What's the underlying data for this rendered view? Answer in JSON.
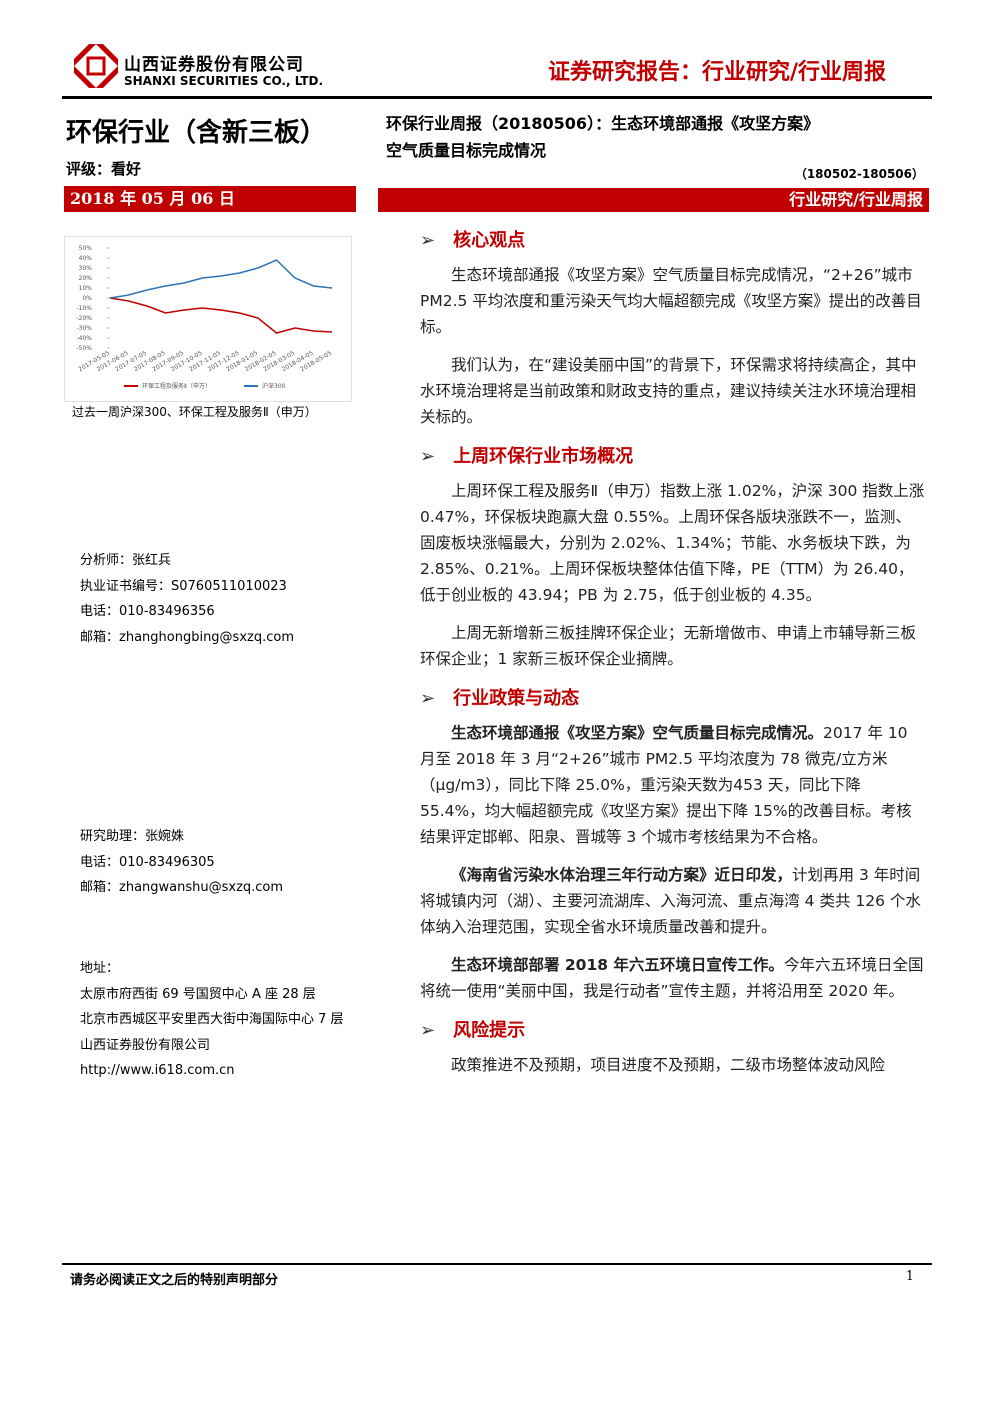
{
  "header": {
    "company_cn": "山西证券股份有限公司",
    "company_en": "SHANXI SECURITIES CO., LTD.",
    "report_type": "证券研究报告：行业研究/行业周报"
  },
  "sidebar": {
    "industry": "环保行业（含新三板）",
    "rating": "评级：看好",
    "date": "2018 年 05 月 06 日",
    "chart_caption": "过去一周沪深300、环保工程及服务Ⅱ（申万）",
    "analyst": [
      "分析师：张红兵",
      "执业证书编号：S0760511010023",
      "电话：010-83496356",
      "邮箱：zhanghongbing@sxzq.com"
    ],
    "assistant": [
      "研究助理：张婉姝",
      "电话：010-83496305",
      "邮箱：zhangwanshu@sxzq.com"
    ],
    "address": [
      "地址：",
      "太原市府西街 69 号国贸中心 A 座 28 层",
      "北京市西城区平安里西大街中海国际中心 7 层",
      "山西证券股份有限公司",
      "http://www.i618.com.cn"
    ]
  },
  "chart_data": {
    "type": "line",
    "categories": [
      "2017-05-05",
      "2017-06-05",
      "2017-07-05",
      "2017-08-05",
      "2017-09-05",
      "2017-10-05",
      "2017-11-05",
      "2017-12-05",
      "2018-01-05",
      "2018-02-05",
      "2018-03-05",
      "2018-04-05",
      "2018-05-05"
    ],
    "series": [
      {
        "name": "环保工程及服务Ⅱ（申万）",
        "color": "#c00000",
        "values": [
          0,
          -3,
          -8,
          -15,
          -12,
          -10,
          -12,
          -15,
          -20,
          -35,
          -30,
          -33,
          -34
        ]
      },
      {
        "name": "沪深300",
        "color": "#2e75b6",
        "values": [
          0,
          3,
          8,
          12,
          15,
          20,
          22,
          25,
          30,
          38,
          20,
          12,
          10
        ]
      }
    ],
    "ylim": [
      -50,
      50
    ],
    "yticks": [
      {
        "value": 50,
        "label": "50%"
      },
      {
        "value": 40,
        "label": "40%"
      },
      {
        "value": 30,
        "label": "30%"
      },
      {
        "value": 20,
        "label": "20%"
      },
      {
        "value": 10,
        "label": "10%"
      },
      {
        "value": 0,
        "label": "0%"
      },
      {
        "value": -10,
        "label": "-10%"
      },
      {
        "value": -20,
        "label": "-20%"
      },
      {
        "value": -30,
        "label": "-30%"
      },
      {
        "value": -40,
        "label": "-40%"
      },
      {
        "value": -50,
        "label": "-50%"
      }
    ]
  },
  "main": {
    "title": [
      "环保行业周报（20180506）：生态环境部通报《攻坚方案》",
      "空气质量目标完成情况"
    ],
    "period": "（180502-180506）",
    "category": "行业研究/行业周报",
    "sections": [
      {
        "heading": "核心观点",
        "paragraphs": [
          {
            "text": "生态环境部通报《攻坚方案》空气质量目标完成情况，“2+26”城市 PM2.5 平均浓度和重污染天气均大幅超额完成《攻坚方案》提出的改善目标。"
          },
          {
            "text": "我们认为，在“建设美丽中国”的背景下，环保需求将持续高企，其中水环境治理将是当前政策和财政支持的重点，建议持续关注水环境治理相关标的。"
          }
        ]
      },
      {
        "heading": "上周环保行业市场概况",
        "paragraphs": [
          {
            "text": "上周环保工程及服务Ⅱ（申万）指数上涨 1.02%，沪深 300 指数上涨 0.47%，环保板块跑赢大盘 0.55%。上周环保各版块涨跌不一，监测、固废板块涨幅最大，分别为 2.02%、1.34%；节能、水务板块下跌，为 2.85%、0.21%。上周环保板块整体估值下降，PE（TTM）为 26.40，低于创业板的 43.94；PB 为 2.75，低于创业板的 4.35。"
          },
          {
            "text": "上周无新增新三板挂牌环保企业；无新增做市、申请上市辅导新三板环保企业；1 家新三板环保企业摘牌。"
          }
        ]
      },
      {
        "heading": "行业政策与动态",
        "paragraphs": [
          {
            "lead": "生态环境部通报《攻坚方案》空气质量目标完成情况。",
            "text": "2017 年 10 月至 2018 年 3 月“2+26”城市 PM2.5 平均浓度为 78 微克/立方米（μg/m3），同比下降 25.0%，重污染天数为453 天，同比下降 55.4%，均大幅超额完成《攻坚方案》提出下降 15%的改善目标。考核结果评定邯郸、阳泉、晋城等 3 个城市考核结果为不合格。"
          },
          {
            "lead": "《海南省污染水体治理三年行动方案》近日印发，",
            "text": "计划再用 3 年时间将城镇内河（湖）、主要河流湖库、入海河流、重点海湾 4 类共 126 个水体纳入治理范围，实现全省水环境质量改善和提升。"
          },
          {
            "lead": "生态环境部部署 2018 年六五环境日宣传工作。",
            "text": "今年六五环境日全国将统一使用“美丽中国，我是行动者”宣传主题，并将沿用至 2020 年。"
          }
        ]
      },
      {
        "heading": "风险提示",
        "paragraphs": [
          {
            "text": "政策推进不及预期，项目进度不及预期，二级市场整体波动风险"
          }
        ]
      }
    ]
  },
  "footer": {
    "disclaimer": "请务必阅读正文之后的特别声明部分",
    "page": "1"
  }
}
